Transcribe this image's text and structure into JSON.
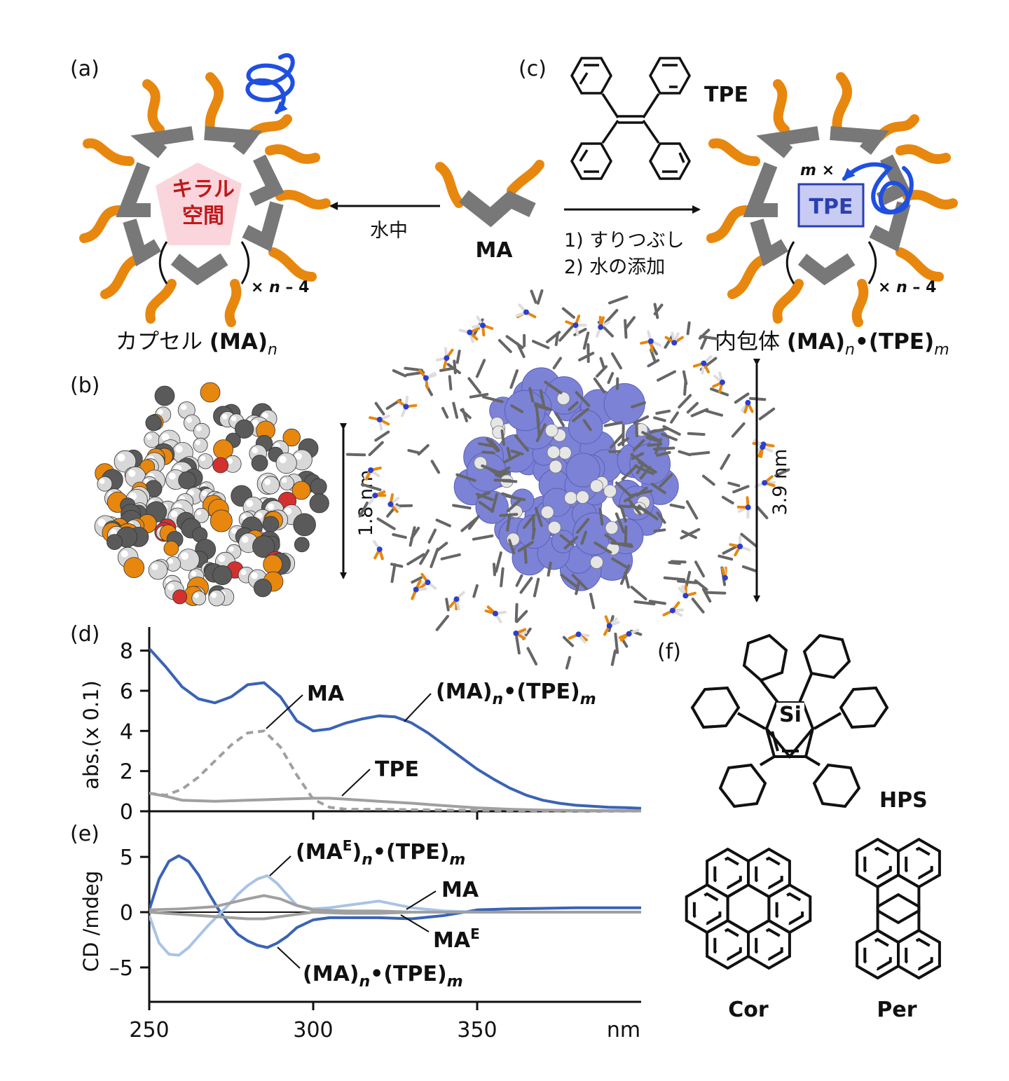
{
  "panel_labels": {
    "a": "(a)",
    "b": "(b)",
    "c": "(c)",
    "d": "(d)",
    "e": "(e)",
    "f": "(f)"
  },
  "capsule": {
    "inner_line1": "キラル",
    "inner_line2": "空間",
    "multiplier_prefix": "× ",
    "multiplier_var": "n",
    "multiplier_suffix": " – 4",
    "caption_text": "カプセル ",
    "caption_bold": "(MA)",
    "caption_sub": "n"
  },
  "water_label": "水中",
  "monomer_label": "MA",
  "tpe_label": "TPE",
  "steps": [
    "1) すりつぶし",
    "2) 水の添加"
  ],
  "complex": {
    "m_label": "m",
    "m_times": " ×",
    "box_label": "TPE",
    "caption_text": "内包体 ",
    "caption_bold1": "(MA)",
    "caption_sub1": "n",
    "caption_dot": "•",
    "caption_bold2": "(TPE)",
    "caption_sub2": "m"
  },
  "sizes": {
    "b": "1.8 nm",
    "complex": "3.9 nm"
  },
  "molecules": {
    "hps": "HPS",
    "si": "Si",
    "cor": "Cor",
    "per": "Per"
  },
  "colors": {
    "orange": "#E8870E",
    "gray": "#787878",
    "blue": "#3A63B5",
    "lightblue": "#A8C4E6",
    "arrowblue": "#1F4FE0",
    "red": "#C0181B",
    "pink": "#FAD6DC",
    "spectrum_gray": "#A0A0A0"
  },
  "chart_data": [
    {
      "type": "line",
      "panel": "d",
      "xlabel": "nm",
      "ylabel": "abs.(x 0.1)",
      "xlim": [
        250,
        400
      ],
      "ylim": [
        0,
        9
      ],
      "x_ticks": [
        "250",
        "300",
        "350"
      ],
      "y_ticks": [
        "0",
        "2",
        "4",
        "6",
        "8"
      ],
      "series": [
        {
          "name": "(MA)n•(TPE)m",
          "style": "solid",
          "color": "#3A63B5",
          "x": [
            250,
            255,
            260,
            265,
            270,
            275,
            280,
            285,
            290,
            295,
            300,
            305,
            310,
            315,
            320,
            325,
            330,
            335,
            340,
            345,
            350,
            355,
            360,
            365,
            370,
            375,
            380,
            385,
            390,
            395,
            400
          ],
          "y": [
            8.1,
            7.2,
            6.2,
            5.6,
            5.4,
            5.7,
            6.3,
            6.4,
            5.7,
            4.5,
            4.0,
            4.1,
            4.4,
            4.6,
            4.75,
            4.7,
            4.4,
            3.9,
            3.3,
            2.7,
            2.1,
            1.6,
            1.15,
            0.8,
            0.55,
            0.4,
            0.3,
            0.25,
            0.2,
            0.18,
            0.15
          ]
        },
        {
          "name": "MA",
          "style": "dashed",
          "color": "#A0A0A0",
          "x": [
            250,
            255,
            260,
            265,
            270,
            275,
            280,
            285,
            290,
            295,
            300,
            305,
            310,
            320,
            330,
            340,
            350,
            360,
            380,
            400
          ],
          "y": [
            0.9,
            0.8,
            1.1,
            1.7,
            2.5,
            3.3,
            3.9,
            4.0,
            3.2,
            1.8,
            0.6,
            0.2,
            0.1,
            0.1,
            0.08,
            0.06,
            0.05,
            0.04,
            0.02,
            0.02
          ]
        },
        {
          "name": "TPE",
          "style": "solid",
          "color": "#A0A0A0",
          "x": [
            250,
            255,
            260,
            270,
            280,
            290,
            300,
            305,
            310,
            320,
            330,
            340,
            350,
            360,
            370,
            380,
            400
          ],
          "y": [
            0.9,
            0.75,
            0.55,
            0.5,
            0.55,
            0.6,
            0.65,
            0.65,
            0.6,
            0.5,
            0.4,
            0.28,
            0.17,
            0.1,
            0.06,
            0.04,
            0.02
          ]
        }
      ],
      "annotations": [
        "MA",
        "(MA)n•(TPE)m",
        "TPE"
      ]
    },
    {
      "type": "line",
      "panel": "e",
      "xlabel": "nm",
      "ylabel": "CD /mdeg",
      "xlim": [
        250,
        400
      ],
      "ylim": [
        -9,
        9
      ],
      "x_ticks": [
        "250",
        "300",
        "350",
        "nm"
      ],
      "y_ticks": [
        "5",
        "0",
        "–5"
      ],
      "series": [
        {
          "name": "(MA)n•(TPE)m",
          "style": "solid",
          "color": "#3A63B5",
          "x": [
            250,
            253,
            256,
            259,
            262,
            265,
            268,
            271,
            274,
            277,
            280,
            283,
            286,
            289,
            292,
            295,
            300,
            305,
            310,
            320,
            330,
            340,
            350,
            360,
            380,
            400
          ],
          "y": [
            0.2,
            3.0,
            4.6,
            5.1,
            4.6,
            3.4,
            1.8,
            0.3,
            -1.0,
            -2.0,
            -2.6,
            -3.0,
            -3.2,
            -2.8,
            -2.2,
            -1.4,
            -0.7,
            -0.5,
            -0.5,
            -0.5,
            -0.6,
            -0.3,
            0.2,
            0.3,
            0.4,
            0.4
          ]
        },
        {
          "name": "(MAE)n•(TPE)m",
          "style": "solid",
          "color": "#A8C4E6",
          "x": [
            250,
            253,
            256,
            259,
            262,
            265,
            268,
            271,
            274,
            277,
            280,
            283,
            286,
            289,
            292,
            295,
            300,
            305,
            310,
            320,
            330,
            340,
            350,
            360,
            380,
            400
          ],
          "y": [
            -0.3,
            -2.8,
            -3.8,
            -3.9,
            -3.2,
            -2.2,
            -1.2,
            -0.3,
            0.6,
            1.6,
            2.4,
            3.0,
            3.3,
            2.6,
            1.6,
            0.6,
            0.3,
            0.4,
            0.6,
            1.0,
            0.4,
            0.1,
            0.0,
            0.0,
            0.0,
            0.0
          ]
        },
        {
          "name": "MA",
          "style": "solid",
          "color": "#A0A0A0",
          "x": [
            250,
            260,
            270,
            280,
            285,
            290,
            295,
            300,
            310,
            320,
            330,
            350,
            370,
            400
          ],
          "y": [
            0.2,
            0.3,
            0.5,
            1.2,
            1.5,
            1.2,
            0.6,
            0.2,
            0.1,
            0.1,
            0.0,
            0.0,
            0.0,
            0.0
          ]
        },
        {
          "name": "MAE",
          "style": "solid",
          "color": "#A0A0A0",
          "x": [
            250,
            260,
            270,
            280,
            285,
            290,
            295,
            300,
            310,
            320,
            330,
            350,
            370,
            400
          ],
          "y": [
            0.0,
            -0.2,
            -0.4,
            -0.6,
            -0.6,
            -0.4,
            -0.2,
            0.0,
            -0.1,
            -0.1,
            0.0,
            0.0,
            0.0,
            0.0
          ]
        }
      ],
      "annotations": [
        "(MAE)n•(TPE)m",
        "MA",
        "MAE",
        "(MA)n•(TPE)m"
      ]
    }
  ]
}
